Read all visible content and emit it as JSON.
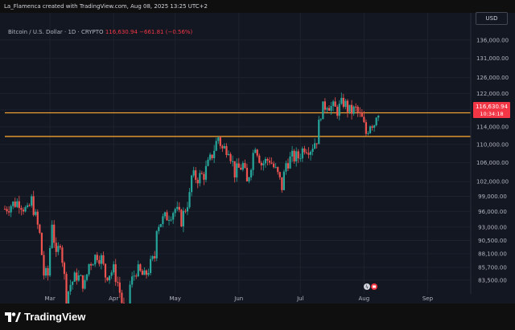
{
  "header": {
    "credit": "La_Flamenca created with TradingView.com, Aug 08, 2025 13:25 UTC+2"
  },
  "legend": {
    "symbol": "Bitcoin / U.S. Dollar · 1D · CRYPTO",
    "last_price": "116,630.94",
    "change": "−661.81 (−0.56%)"
  },
  "currency_button": "USD",
  "footer": {
    "logo_text": "TradingView"
  },
  "price_label": {
    "price": "116,630.94",
    "countdown": "10:34:18"
  },
  "colors": {
    "up": "#26a69a",
    "down": "#ef5350",
    "level": "#f0a030",
    "background": "#131722",
    "axis_text": "#b2b5be"
  },
  "chart_data": {
    "type": "candlestick",
    "title": "Bitcoin / U.S. Dollar · 1D · CRYPTO",
    "xlabel": "",
    "ylabel": "",
    "y_scale": "log",
    "ylim": [
      82000,
      140000
    ],
    "grid": true,
    "y_ticks": [
      "136,000.00",
      "131,000.00",
      "126,000.00",
      "122,000.00",
      "118,000.00",
      "114,000.00",
      "110,000.00",
      "106,000.00",
      "102,000.00",
      "99,000.00",
      "96,000.00",
      "93,000.00",
      "90,500.00",
      "88,100.00",
      "85,700.00",
      "83,500.00"
    ],
    "y_tick_values": [
      136000,
      131000,
      126000,
      122000,
      118000,
      114000,
      110000,
      106000,
      102000,
      99000,
      96000,
      93000,
      90500,
      88100,
      85700,
      83500
    ],
    "x_ticks": [
      "Mar",
      "Apr",
      "May",
      "Jun",
      "Jul",
      "Aug",
      "Sep"
    ],
    "x_tick_dates": [
      "2025-03-01",
      "2025-04-01",
      "2025-05-01",
      "2025-06-01",
      "2025-07-01",
      "2025-08-01",
      "2025-09-01"
    ],
    "date_range": [
      "2025-02-07",
      "2025-08-08"
    ],
    "x_axis_end": "2025-09-22",
    "horizontal_levels": [
      117300,
      111800
    ],
    "close_path": [
      [
        "2025-02-07",
        96500
      ],
      [
        "2025-02-10",
        97300
      ],
      [
        "2025-02-14",
        98000
      ],
      [
        "2025-02-18",
        95800
      ],
      [
        "2025-02-20",
        98200
      ],
      [
        "2025-02-24",
        91500
      ],
      [
        "2025-02-26",
        84500
      ],
      [
        "2025-02-28",
        84300
      ],
      [
        "2025-03-02",
        94200
      ],
      [
        "2025-03-04",
        87200
      ],
      [
        "2025-03-06",
        90500
      ],
      [
        "2025-03-09",
        80700
      ],
      [
        "2025-03-11",
        82800
      ],
      [
        "2025-03-14",
        84300
      ],
      [
        "2025-03-18",
        82700
      ],
      [
        "2025-03-20",
        86300
      ],
      [
        "2025-03-24",
        88000
      ],
      [
        "2025-03-26",
        87200
      ],
      [
        "2025-03-28",
        84300
      ],
      [
        "2025-04-01",
        85200
      ],
      [
        "2025-04-03",
        83100
      ],
      [
        "2025-04-06",
        78300
      ],
      [
        "2025-04-08",
        76300
      ],
      [
        "2025-04-09",
        82600
      ],
      [
        "2025-04-12",
        85300
      ],
      [
        "2025-04-16",
        84000
      ],
      [
        "2025-04-21",
        87500
      ],
      [
        "2025-04-22",
        93400
      ],
      [
        "2025-04-26",
        94700
      ],
      [
        "2025-05-01",
        96500
      ],
      [
        "2025-05-04",
        94300
      ],
      [
        "2025-05-08",
        99000
      ],
      [
        "2025-05-09",
        103000
      ],
      [
        "2025-05-12",
        102800
      ],
      [
        "2025-05-15",
        103500
      ],
      [
        "2025-05-18",
        106500
      ],
      [
        "2025-05-22",
        111700
      ],
      [
        "2025-05-24",
        108900
      ],
      [
        "2025-05-27",
        109500
      ],
      [
        "2025-05-30",
        103900
      ],
      [
        "2025-06-03",
        105500
      ],
      [
        "2025-06-05",
        101500
      ],
      [
        "2025-06-09",
        110200
      ],
      [
        "2025-06-12",
        105700
      ],
      [
        "2025-06-16",
        106800
      ],
      [
        "2025-06-20",
        103300
      ],
      [
        "2025-06-22",
        100900
      ],
      [
        "2025-06-24",
        105900
      ],
      [
        "2025-06-27",
        107100
      ],
      [
        "2025-06-30",
        107200
      ],
      [
        "2025-07-03",
        109600
      ],
      [
        "2025-07-06",
        109200
      ],
      [
        "2025-07-09",
        111300
      ],
      [
        "2025-07-11",
        117500
      ],
      [
        "2025-07-14",
        119800
      ],
      [
        "2025-07-16",
        118700
      ],
      [
        "2025-07-19",
        117900
      ],
      [
        "2025-07-22",
        119900
      ],
      [
        "2025-07-25",
        117600
      ],
      [
        "2025-07-28",
        118000
      ],
      [
        "2025-07-31",
        115700
      ],
      [
        "2025-08-02",
        112500
      ],
      [
        "2025-08-04",
        115000
      ],
      [
        "2025-08-06",
        114900
      ],
      [
        "2025-08-07",
        117300
      ],
      [
        "2025-08-08",
        116630
      ]
    ]
  }
}
